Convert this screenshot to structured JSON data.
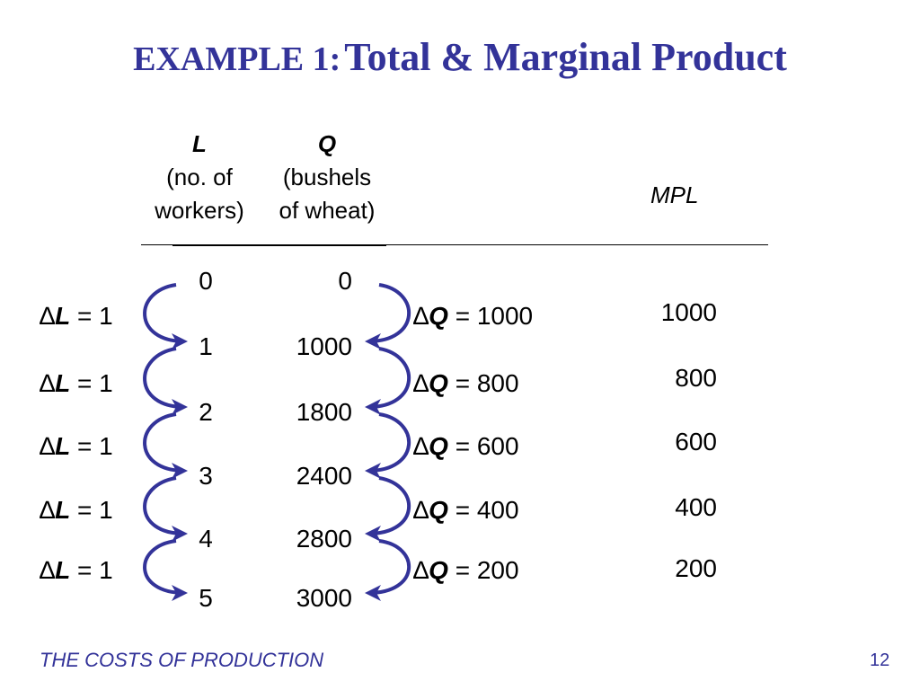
{
  "title": {
    "prefix": "EXAMPLE 1:",
    "main": "Total & Marginal Product"
  },
  "headers": {
    "labor": {
      "symbol": "L",
      "line1": "(no. of",
      "line2": "workers)"
    },
    "output": {
      "symbol": "Q",
      "line1": "(bushels",
      "line2": "of wheat)"
    },
    "mpl": "MPL"
  },
  "rows": [
    {
      "L": "0",
      "Q": "0"
    },
    {
      "L": "1",
      "Q": "1000"
    },
    {
      "L": "2",
      "Q": "1800"
    },
    {
      "L": "3",
      "Q": "2400"
    },
    {
      "L": "4",
      "Q": "2800"
    },
    {
      "L": "5",
      "Q": "3000"
    }
  ],
  "delta_symbol": "∆",
  "changes": [
    {
      "dL_var": "L",
      "dL_val": " = 1",
      "dQ_var": "Q",
      "dQ_val": " = 1000",
      "mpl": "1000"
    },
    {
      "dL_var": "L",
      "dL_val": " = 1",
      "dQ_var": "Q",
      "dQ_val": " = 800",
      "mpl": "800"
    },
    {
      "dL_var": "L",
      "dL_val": " = 1",
      "dQ_var": "Q",
      "dQ_val": " = 600",
      "mpl": "600"
    },
    {
      "dL_var": "L",
      "dL_val": " = 1",
      "dQ_var": "Q",
      "dQ_val": " = 400",
      "mpl": "400"
    },
    {
      "dL_var": "L",
      "dL_val": " = 1",
      "dQ_var": "Q",
      "dQ_val": " = 200",
      "mpl": "200"
    }
  ],
  "footer": {
    "text": "THE COSTS OF PRODUCTION",
    "page": "12"
  },
  "colors": {
    "accent": "#333399",
    "arrow": "#333399",
    "rule": "#000000"
  }
}
